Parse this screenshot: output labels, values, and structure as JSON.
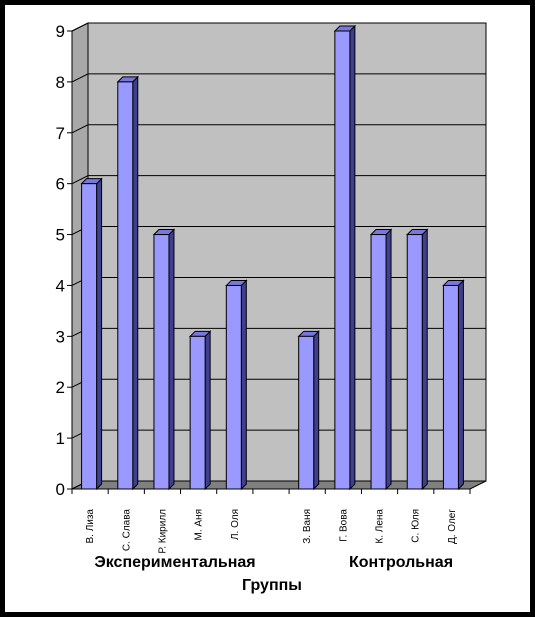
{
  "chart_data": {
    "type": "bar",
    "title": "",
    "xlabel": "Группы",
    "ylabel": "",
    "ylim": [
      0,
      9
    ],
    "yticks": [
      0,
      1,
      2,
      3,
      4,
      5,
      6,
      7,
      8,
      9
    ],
    "grid": true,
    "legend": "none",
    "colors": {
      "bar_front": "#9999ff",
      "bar_side": "#3f3f8f",
      "bar_top": "#7777dd",
      "wall": "#c0c0c0",
      "floor": "#808080"
    },
    "categories": [
      "В. Лиза",
      "С. Слава",
      "Р. Кирилл",
      "М. Аня",
      "Л. Оля",
      "",
      "З. Ваня",
      "Г. Вова",
      "К. Лена",
      "С. Юля",
      "Д. Олег"
    ],
    "values": [
      6,
      8,
      5,
      3,
      4,
      null,
      3,
      9,
      5,
      5,
      4
    ],
    "groups": [
      {
        "label": "Экспериментальная",
        "members": [
          "В. Лиза",
          "С. Слава",
          "Р. Кирилл",
          "М. Аня",
          "Л. Оля"
        ]
      },
      {
        "label": "Контрольная",
        "members": [
          "З. Ваня",
          "Г. Вова",
          "К. Лена",
          "С. Юля",
          "Д. Олег"
        ]
      }
    ]
  }
}
